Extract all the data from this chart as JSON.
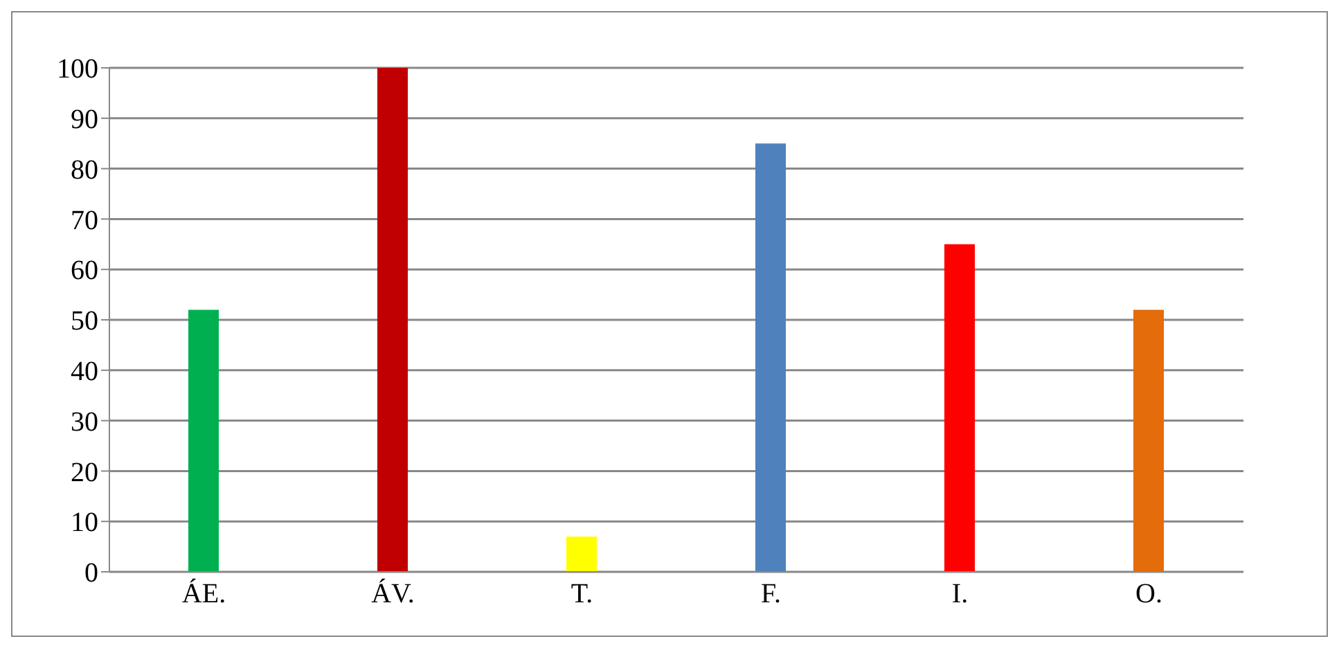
{
  "chart_data": {
    "type": "bar",
    "categories": [
      "ÁE.",
      "ÁV.",
      "T.",
      "F.",
      "I.",
      "O."
    ],
    "values": [
      52,
      100,
      7,
      85,
      65,
      52
    ],
    "colors": [
      "#00b050",
      "#c00000",
      "#ffff00",
      "#4f81bd",
      "#ff0000",
      "#e46c0a"
    ],
    "ylim": [
      0,
      100
    ],
    "yticks": [
      0,
      10,
      20,
      30,
      40,
      50,
      60,
      70,
      80,
      90,
      100
    ],
    "grid": "y",
    "legend": false
  }
}
